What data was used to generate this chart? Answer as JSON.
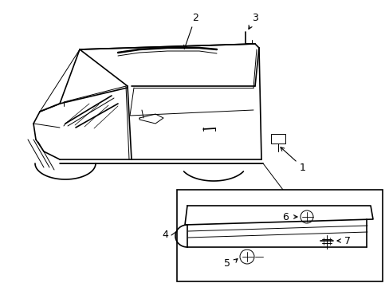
{
  "background_color": "#ffffff",
  "line_color": "#000000",
  "figure_width": 4.89,
  "figure_height": 3.6,
  "dpi": 100,
  "label_fontsize": 9
}
